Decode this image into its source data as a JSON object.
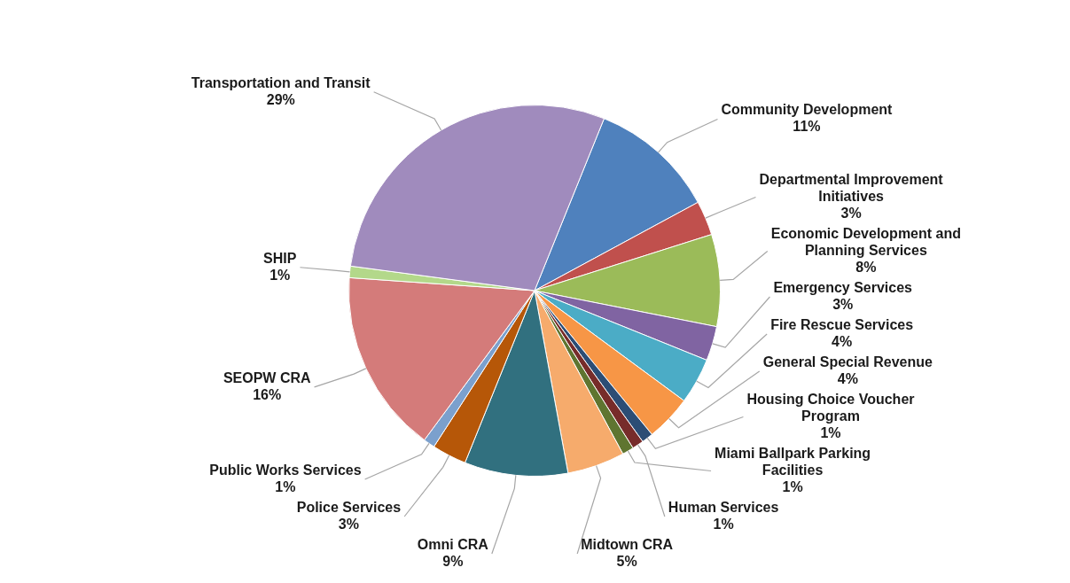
{
  "chart_data": {
    "type": "pie",
    "categories": [
      "Community Development",
      "Departmental Improvement Initiatives",
      "Economic Development and Planning Services",
      "Emergency Services",
      "Fire Rescue Services",
      "General Special Revenue",
      "Housing Choice Voucher Program",
      "Human Services",
      "Miami Ballpark Parking Facilities",
      "Midtown CRA",
      "Omni CRA",
      "Police Services",
      "Public Works Services",
      "SEOPW CRA",
      "SHIP",
      "Transportation and Transit"
    ],
    "values": [
      11,
      3,
      8,
      3,
      4,
      4,
      1,
      1,
      1,
      5,
      9,
      3,
      1,
      16,
      1,
      29
    ],
    "value_labels": [
      "11%",
      "3%",
      "8%",
      "3%",
      "4%",
      "4%",
      "1%",
      "1%",
      "1%",
      "5%",
      "9%",
      "3%",
      "1%",
      "16%",
      "1%",
      "29%"
    ],
    "colors": [
      "#4f81bd",
      "#c0504d",
      "#9bbb59",
      "#8064a2",
      "#4bacc6",
      "#f79646",
      "#2c4d75",
      "#772c2a",
      "#5f7530",
      "#f6ab6c",
      "#31707f",
      "#b65708",
      "#7ba0cd",
      "#d47b7a",
      "#b3d88a",
      "#a08bbd"
    ]
  }
}
